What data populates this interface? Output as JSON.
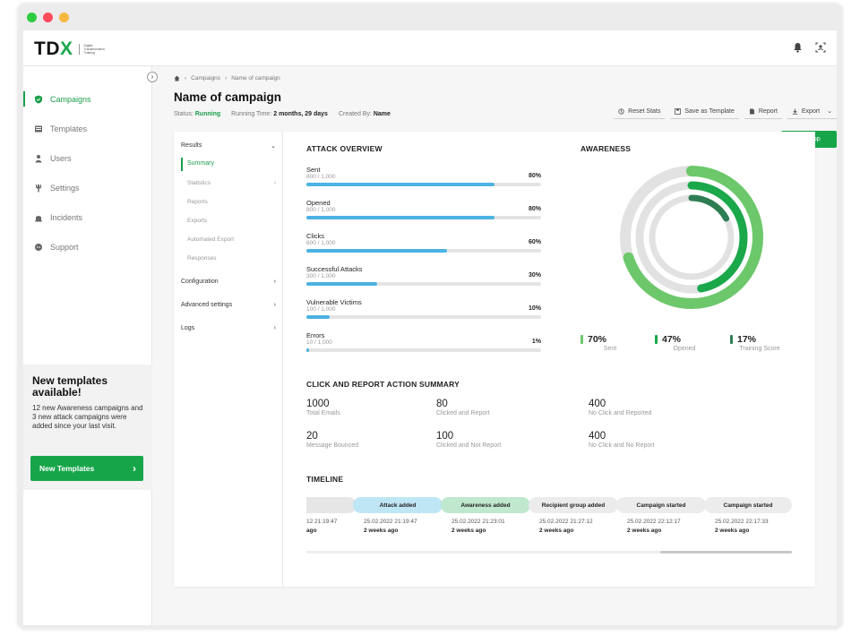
{
  "logo": {
    "text_main": "TD",
    "text_accent": "X",
    "subtitle": "Digital Transformation Training"
  },
  "topbar": {
    "icons": [
      "bell-icon",
      "user-scan-icon"
    ]
  },
  "sidebar": {
    "items": [
      {
        "label": "Campaigns",
        "icon": "shield-icon",
        "active": true
      },
      {
        "label": "Templates",
        "icon": "template-icon"
      },
      {
        "label": "Users",
        "icon": "users-icon"
      },
      {
        "label": "Settings",
        "icon": "wrench-icon"
      },
      {
        "label": "Incidents",
        "icon": "incidents-icon"
      },
      {
        "label": "Support",
        "icon": "chat-icon"
      }
    ],
    "promo": {
      "title": "New templates available!",
      "text": "12 new Awareness campaigns and 3 new attack campaigns were added since your last visit.",
      "button": "New Templates"
    }
  },
  "breadcrumb": [
    "Campaigns",
    "Name of campaign"
  ],
  "page": {
    "title": "Name of campaign",
    "status_label": "Status:",
    "status_value": "Running",
    "runtime_label": "Running Time:",
    "runtime_value": "2 months, 29 days",
    "created_label": "Created By:",
    "created_value": "Name"
  },
  "actions": {
    "reset": "Reset Stats",
    "save_template": "Save as Template",
    "report": "Report",
    "export": "Export",
    "stop": "Stop"
  },
  "subnav": {
    "results": "Results",
    "summary": "Summary",
    "statistics": "Statistics",
    "reports": "Reports",
    "exports": "Exports",
    "automated_export": "Automated Export",
    "responses": "Responses",
    "configuration": "Configuration",
    "advanced": "Advanced settings",
    "logs": "Logs"
  },
  "attack_overview": {
    "title": "ATTACK OVERVIEW",
    "rows": [
      {
        "label": "Sent",
        "count": "800 / 1,000",
        "pct": "80%",
        "value": 0.8
      },
      {
        "label": "Opened",
        "count": "800 / 1,000",
        "pct": "80%",
        "value": 0.8
      },
      {
        "label": "Clicks",
        "count": "600 / 1,000",
        "pct": "60%",
        "value": 0.6
      },
      {
        "label": "Successful Attacks",
        "count": "300 / 1,000",
        "pct": "30%",
        "value": 0.3
      },
      {
        "label": "Vulnerable Victims",
        "count": "100 / 1,000",
        "pct": "10%",
        "value": 0.1
      },
      {
        "label": "Errors",
        "count": "10 / 1,000",
        "pct": "1%",
        "value": 0.01
      }
    ]
  },
  "awareness": {
    "title": "AWARENESS",
    "stats": [
      {
        "value": "70%",
        "label": "Sent",
        "fraction": 0.7,
        "color": "#6cc86a"
      },
      {
        "value": "47%",
        "label": "Opened",
        "fraction": 0.47,
        "color": "#1aa84b"
      },
      {
        "value": "17%",
        "label": "Training Score",
        "fraction": 0.17,
        "color": "#2f7d55"
      }
    ]
  },
  "summary": {
    "title": "CLICK AND REPORT ACTION SUMMARY",
    "items": [
      {
        "value": "1000",
        "label": "Total Emails"
      },
      {
        "value": "80",
        "label": "Clicked and Report"
      },
      {
        "value": "400",
        "label": "No Click and Reported"
      },
      {
        "value": "20",
        "label": "Message Bounced"
      },
      {
        "value": "100",
        "label": "Clicked and Not Report"
      },
      {
        "value": "400",
        "label": "No Click and No Report"
      }
    ]
  },
  "timeline": {
    "title": "TIMELINE",
    "events": [
      {
        "label": "",
        "date": "12 21:19:47",
        "ago": "ago",
        "color": "#e6e6e6"
      },
      {
        "label": "Attack added",
        "date": "25.02.2022 21:19:47",
        "ago": "2 weeks ago",
        "color": "#bfe6f5"
      },
      {
        "label": "Awareness added",
        "date": "25.02.2022 21:23:01",
        "ago": "2 weeks ago",
        "color": "#bfe8cf"
      },
      {
        "label": "Recipient group added",
        "date": "25.02.2022 21:27:12",
        "ago": "2 weeks ago",
        "color": "#ececec"
      },
      {
        "label": "Campaign started",
        "date": "25.02.2022 22:12:17",
        "ago": "2 weeks ago",
        "color": "#ececec"
      },
      {
        "label": "Campaign started",
        "date": "25.02.2022 22:17:33",
        "ago": "2 weeks ago",
        "color": "#ececec"
      }
    ]
  },
  "colors": {
    "brand": "#1aa84b",
    "bar": "#4cb2e2"
  }
}
